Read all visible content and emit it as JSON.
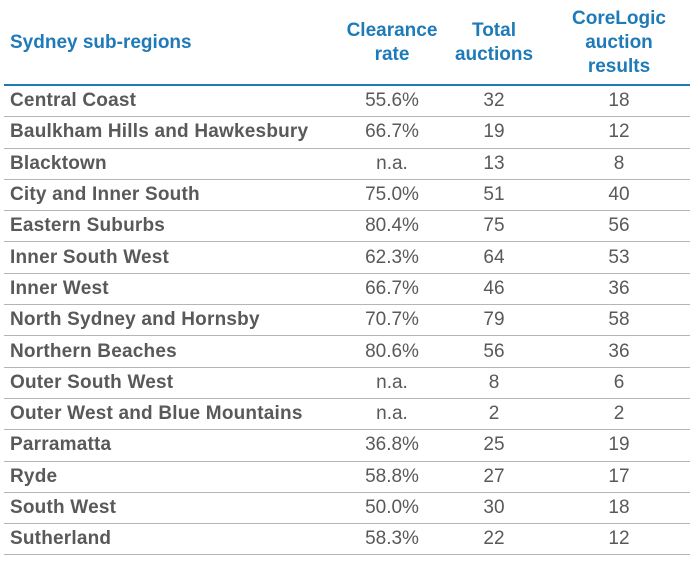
{
  "table": {
    "headers": {
      "region": "Sydney sub-regions",
      "clearance": [
        "Clearance",
        "rate"
      ],
      "total": [
        "Total",
        "auctions"
      ],
      "corelogic": [
        "CoreLogic",
        "auction",
        "results"
      ]
    },
    "rows": [
      {
        "region": "Central Coast",
        "clearance": "55.6%",
        "total": "32",
        "corelogic": "18"
      },
      {
        "region": "Baulkham Hills and Hawkesbury",
        "clearance": "66.7%",
        "total": "19",
        "corelogic": "12"
      },
      {
        "region": "Blacktown",
        "clearance": "n.a.",
        "total": "13",
        "corelogic": "8"
      },
      {
        "region": "City and Inner South",
        "clearance": "75.0%",
        "total": "51",
        "corelogic": "40"
      },
      {
        "region": "Eastern Suburbs",
        "clearance": "80.4%",
        "total": "75",
        "corelogic": "56"
      },
      {
        "region": "Inner South West",
        "clearance": "62.3%",
        "total": "64",
        "corelogic": "53"
      },
      {
        "region": "Inner West",
        "clearance": "66.7%",
        "total": "46",
        "corelogic": "36"
      },
      {
        "region": "North Sydney and Hornsby",
        "clearance": "70.7%",
        "total": "79",
        "corelogic": "58"
      },
      {
        "region": "Northern Beaches",
        "clearance": "80.6%",
        "total": "56",
        "corelogic": "36"
      },
      {
        "region": "Outer South West",
        "clearance": "n.a.",
        "total": "8",
        "corelogic": "6"
      },
      {
        "region": "Outer West and Blue Mountains",
        "clearance": "n.a.",
        "total": "2",
        "corelogic": "2"
      },
      {
        "region": "Parramatta",
        "clearance": "36.8%",
        "total": "25",
        "corelogic": "19"
      },
      {
        "region": "Ryde",
        "clearance": "58.8%",
        "total": "27",
        "corelogic": "17"
      },
      {
        "region": "South West",
        "clearance": "50.0%",
        "total": "30",
        "corelogic": "18"
      },
      {
        "region": "Sutherland",
        "clearance": "58.3%",
        "total": "22",
        "corelogic": "12"
      }
    ]
  },
  "colors": {
    "header_text": "#1f7ab8",
    "body_text": "#595959",
    "rule": "#b5b5b5"
  }
}
